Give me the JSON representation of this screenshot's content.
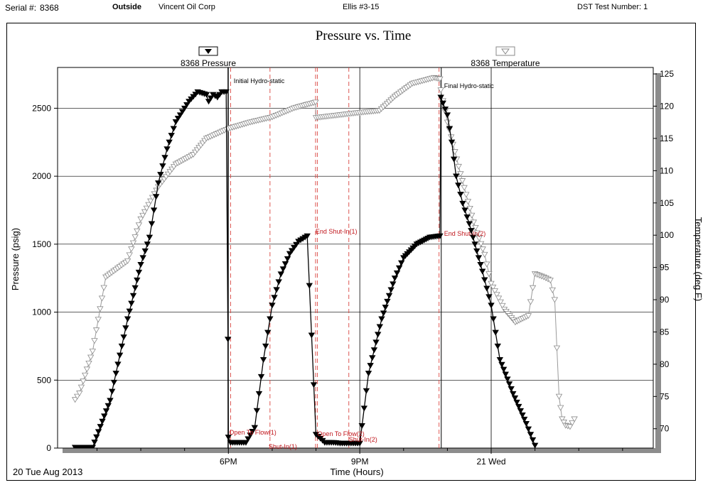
{
  "header": {
    "serial_label": "Serial #:",
    "serial_value": "8368",
    "location": "Outside",
    "company": "Vincent Oil Corp",
    "well": "Ellis #3-15",
    "test_number": "DST Test Number: 1"
  },
  "chart_data": {
    "type": "line",
    "title": "Pressure vs. Time",
    "xlabel": "Time (Hours)",
    "ylabel": "Pressure (psig)",
    "y2label": "Temperature (deg F)",
    "date_label": "20 Tue Aug 2013",
    "x_tick_labels": [
      "6PM",
      "9PM",
      "21 Wed"
    ],
    "x_ticks_hours": [
      18,
      21,
      24
    ],
    "xlim_hours": [
      14.1,
      27.7
    ],
    "ylim": [
      0,
      2800
    ],
    "y_ticks": [
      0,
      500,
      1000,
      1500,
      2000,
      2500
    ],
    "y2lim": [
      67,
      126
    ],
    "y2_ticks": [
      70,
      75,
      80,
      85,
      90,
      95,
      100,
      105,
      110,
      115,
      120,
      125
    ],
    "grid": true,
    "legend": [
      {
        "label": "8368 Pressure",
        "marker": "filled-down-triangle",
        "color": "#000000"
      },
      {
        "label": "8368 Temperature",
        "marker": "open-down-triangle",
        "color": "#8a8a8a"
      }
    ],
    "series": [
      {
        "name": "8368 Pressure",
        "axis": "left",
        "x_hours": [
          14.5,
          14.6,
          14.9,
          15.3,
          15.7,
          16.0,
          16.2,
          16.4,
          16.6,
          16.8,
          16.9,
          17.1,
          17.3,
          17.5,
          17.55,
          17.65,
          17.75,
          17.85,
          17.95,
          17.99,
          18.0,
          18.05,
          18.2,
          18.4,
          18.6,
          18.8,
          19.0,
          19.2,
          19.4,
          19.6,
          19.8,
          20.0,
          20.2,
          20.4,
          20.55,
          20.6,
          20.8,
          21.0,
          21.2,
          21.5,
          21.8,
          22.0,
          22.3,
          22.6,
          22.83,
          22.85,
          23.0,
          23.1,
          23.2,
          23.35,
          23.5,
          23.8,
          24.0,
          24.2,
          24.5,
          24.8,
          25.0
        ],
        "values": [
          5,
          5,
          5,
          350,
          950,
          1350,
          1550,
          1950,
          2200,
          2400,
          2450,
          2550,
          2620,
          2600,
          2550,
          2600,
          2580,
          2620,
          2620,
          800,
          80,
          40,
          40,
          40,
          150,
          650,
          1050,
          1280,
          1430,
          1520,
          1560,
          100,
          40,
          40,
          35,
          35,
          35,
          35,
          550,
          950,
          1250,
          1400,
          1500,
          1550,
          1560,
          2580,
          2450,
          2250,
          2000,
          1800,
          1650,
          1300,
          1050,
          650,
          400,
          180,
          20
        ]
      },
      {
        "name": "8368 Temperature",
        "axis": "right",
        "x_hours": [
          14.5,
          14.6,
          14.9,
          15.2,
          15.7,
          16.0,
          16.4,
          16.8,
          17.2,
          17.5,
          18.0,
          18.5,
          19.0,
          19.5,
          19.99,
          20.0,
          20.5,
          21.0,
          21.45,
          21.8,
          22.2,
          22.7,
          22.83,
          22.85,
          23.0,
          23.3,
          23.6,
          23.85,
          24.0,
          24.3,
          24.55,
          24.85,
          25.0,
          25.2,
          25.35,
          25.45,
          25.55,
          25.62,
          25.7,
          25.8,
          25.9
        ],
        "values": [
          74.5,
          75.5,
          82,
          93.5,
          96,
          102.5,
          107.5,
          111,
          112.5,
          115,
          116.5,
          117.5,
          118.3,
          119.7,
          120.6,
          118.2,
          118.6,
          119,
          119.3,
          121.5,
          123.5,
          124.4,
          124.2,
          122.5,
          117.5,
          109.5,
          102,
          97,
          92.5,
          88.5,
          86.5,
          87.5,
          94,
          93.5,
          93,
          90,
          75,
          71.5,
          70.5,
          70.3,
          71.5
        ]
      }
    ],
    "event_lines": [
      {
        "x_hours": 17.99,
        "style": "solid",
        "label": "Initial Hydro-static"
      },
      {
        "x_hours": 18.05,
        "style": "dashed",
        "label": "Open To Flow(1)"
      },
      {
        "x_hours": 18.95,
        "style": "dashed",
        "label": "Shut-In(1)"
      },
      {
        "x_hours": 19.99,
        "style": "dashed",
        "label": "End Shut-In(1)"
      },
      {
        "x_hours": 20.03,
        "style": "dashed",
        "label": "Open To Flow(2)"
      },
      {
        "x_hours": 20.75,
        "style": "dashed",
        "label": "Shut-In(2)"
      },
      {
        "x_hours": 22.81,
        "style": "dashed",
        "label": "End Shut-In(2)"
      },
      {
        "x_hours": 22.86,
        "style": "solid",
        "label": "Final Hydro-static"
      }
    ]
  }
}
